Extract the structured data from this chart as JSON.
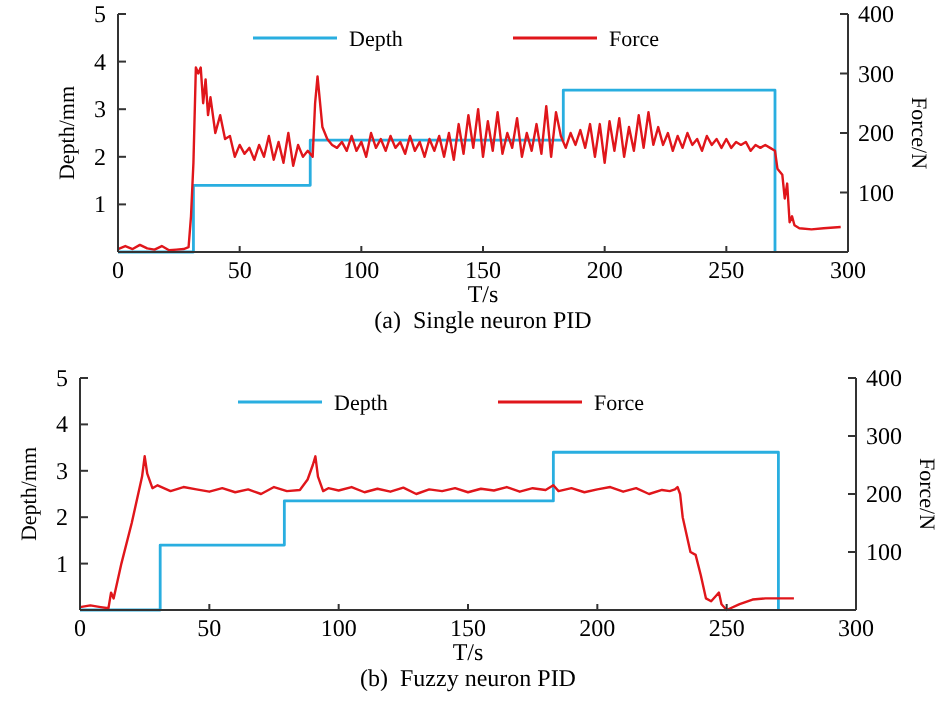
{
  "chart_data": [
    {
      "type": "line",
      "title": "(a)  Single neuron PID",
      "xlabel": "T/s",
      "ylabel": "Depth/mm",
      "y2label": "Force/N",
      "xlim": [
        0,
        300
      ],
      "xticks": [
        0,
        50,
        100,
        150,
        200,
        250,
        300
      ],
      "ylim": [
        0,
        5
      ],
      "yticks": [
        1,
        2,
        3,
        4,
        5
      ],
      "y2lim": [
        0,
        400
      ],
      "y2ticks": [
        100,
        200,
        300,
        400
      ],
      "legend": "top",
      "grid": false,
      "marker": "none",
      "line_style": "solid",
      "series": [
        {
          "name": "Depth",
          "color": "#29aee0",
          "type": "step",
          "x": [
            0,
            31,
            79,
            183,
            270
          ],
          "values": [
            0,
            1.4,
            2.35,
            3.4,
            0
          ]
        },
        {
          "name": "Force",
          "color": "#e0161b",
          "axis": "y2",
          "x": [
            0,
            3,
            6,
            9,
            12,
            15,
            18,
            21,
            24,
            27,
            29,
            30,
            31,
            32,
            33,
            34,
            35,
            36,
            37,
            38,
            40,
            42,
            44,
            46,
            48,
            50,
            52,
            54,
            56,
            58,
            60,
            62,
            64,
            66,
            68,
            70,
            72,
            74,
            76,
            78,
            79,
            80,
            81,
            82,
            84,
            86,
            88,
            90,
            92,
            94,
            96,
            98,
            100,
            102,
            104,
            106,
            108,
            110,
            112,
            114,
            116,
            118,
            120,
            122,
            124,
            126,
            128,
            130,
            132,
            134,
            136,
            138,
            140,
            142,
            144,
            146,
            148,
            150,
            152,
            154,
            156,
            158,
            160,
            162,
            164,
            166,
            168,
            170,
            172,
            174,
            176,
            178,
            180,
            182,
            184,
            186,
            188,
            190,
            192,
            194,
            196,
            198,
            200,
            202,
            204,
            206,
            208,
            210,
            212,
            214,
            216,
            218,
            220,
            222,
            224,
            226,
            228,
            230,
            232,
            234,
            236,
            238,
            240,
            242,
            244,
            246,
            248,
            250,
            252,
            254,
            256,
            258,
            260,
            262,
            264,
            266,
            268,
            270,
            271,
            272,
            273,
            274,
            275,
            276,
            277,
            278,
            280,
            285,
            290,
            297
          ],
          "values": [
            5,
            10,
            5,
            12,
            6,
            4,
            10,
            3,
            4,
            5,
            8,
            60,
            150,
            310,
            300,
            310,
            250,
            290,
            230,
            260,
            200,
            230,
            190,
            195,
            160,
            180,
            165,
            175,
            155,
            180,
            160,
            195,
            155,
            185,
            150,
            200,
            145,
            180,
            160,
            170,
            165,
            160,
            250,
            295,
            210,
            190,
            180,
            175,
            185,
            170,
            195,
            170,
            185,
            160,
            200,
            175,
            190,
            170,
            195,
            175,
            185,
            165,
            195,
            170,
            185,
            160,
            190,
            170,
            195,
            160,
            200,
            155,
            215,
            165,
            230,
            175,
            240,
            160,
            220,
            170,
            235,
            165,
            200,
            175,
            225,
            160,
            200,
            170,
            215,
            165,
            245,
            160,
            235,
            195,
            175,
            200,
            180,
            205,
            175,
            215,
            160,
            215,
            150,
            220,
            170,
            225,
            160,
            210,
            170,
            230,
            175,
            235,
            180,
            210,
            180,
            200,
            170,
            195,
            175,
            200,
            180,
            190,
            170,
            195,
            180,
            190,
            175,
            190,
            175,
            185,
            180,
            185,
            170,
            180,
            175,
            180,
            175,
            170,
            140,
            135,
            130,
            90,
            115,
            50,
            60,
            45,
            40,
            38,
            40,
            42
          ]
        }
      ]
    },
    {
      "type": "line",
      "title": "(b)  Fuzzy neuron PID",
      "xlabel": "T/s",
      "ylabel": "Depth/mm",
      "y2label": "Force/N",
      "xlim": [
        0,
        300
      ],
      "xticks": [
        0,
        50,
        100,
        150,
        200,
        250,
        300
      ],
      "ylim": [
        0,
        5
      ],
      "yticks": [
        1,
        2,
        3,
        4,
        5
      ],
      "y2lim": [
        0,
        400
      ],
      "y2ticks": [
        100,
        200,
        300,
        400
      ],
      "legend": "top",
      "grid": false,
      "marker": "none",
      "line_style": "solid",
      "series": [
        {
          "name": "Depth",
          "color": "#29aee0",
          "type": "step",
          "x": [
            0,
            31,
            79,
            183,
            270
          ],
          "values": [
            0,
            1.4,
            2.35,
            3.4,
            0
          ]
        },
        {
          "name": "Force",
          "color": "#e0161b",
          "axis": "y2",
          "x": [
            0,
            4,
            8,
            11,
            12,
            13,
            16,
            20,
            24,
            25,
            26,
            28,
            30,
            35,
            40,
            45,
            50,
            55,
            60,
            65,
            70,
            75,
            80,
            85,
            88,
            90,
            91,
            92,
            94,
            96,
            100,
            105,
            110,
            115,
            120,
            125,
            130,
            135,
            140,
            145,
            150,
            155,
            160,
            165,
            170,
            175,
            180,
            183,
            185,
            190,
            195,
            200,
            205,
            210,
            215,
            220,
            225,
            228,
            230,
            231,
            232,
            233,
            235,
            236,
            238,
            240,
            242,
            244,
            246,
            247,
            248,
            250,
            255,
            260,
            265,
            270,
            276
          ],
          "values": [
            5,
            8,
            5,
            3,
            30,
            20,
            80,
            150,
            230,
            265,
            235,
            210,
            215,
            205,
            212,
            208,
            204,
            210,
            203,
            208,
            200,
            212,
            205,
            207,
            225,
            250,
            265,
            230,
            205,
            210,
            206,
            212,
            203,
            209,
            204,
            211,
            200,
            208,
            205,
            210,
            203,
            209,
            206,
            212,
            204,
            210,
            207,
            215,
            205,
            210,
            203,
            208,
            212,
            204,
            210,
            200,
            207,
            205,
            208,
            212,
            200,
            160,
            120,
            100,
            95,
            60,
            20,
            15,
            25,
            30,
            10,
            0,
            10,
            18,
            20,
            20,
            20
          ]
        }
      ]
    }
  ]
}
